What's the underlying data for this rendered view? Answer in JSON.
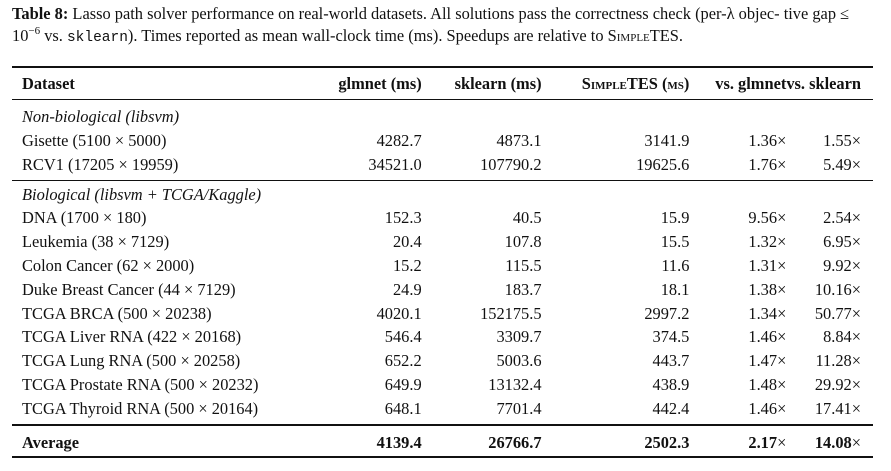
{
  "caption": {
    "label": "Table 8:",
    "text_part1": " Lasso path solver performance on real-world datasets. All solutions pass the correctness check (per-λ objec- tive gap ≤ 10",
    "exponent": "−6",
    "text_part2": " vs. ",
    "code": "sklearn",
    "text_part3": "). Times reported as mean wall-clock time (ms). Speedups are relative to ",
    "method": "SimpleTES",
    "text_end": "."
  },
  "table": {
    "headers": {
      "dataset": "Dataset",
      "glmnet": "glmnet (ms)",
      "sklearn": "sklearn (ms)",
      "simpletes": "SimpleTES (ms)",
      "vs_glmnet": "vs. glmnet",
      "vs_sklearn": "vs. sklearn"
    },
    "groups": [
      {
        "label": "Non-biological (libsvm)",
        "rows": [
          {
            "dataset": "Gisette (5100 × 5000)",
            "glmnet": "4282.7",
            "sklearn": "4873.1",
            "simpletes": "3141.9",
            "vs_glmnet": "1.36",
            "vs_sklearn": "1.55"
          },
          {
            "dataset": "RCV1 (17205 × 19959)",
            "glmnet": "34521.0",
            "sklearn": "107790.2",
            "simpletes": "19625.6",
            "vs_glmnet": "1.76",
            "vs_sklearn": "5.49"
          }
        ]
      },
      {
        "label": "Biological (libsvm + TCGA/Kaggle)",
        "rows": [
          {
            "dataset": "DNA (1700 × 180)",
            "glmnet": "152.3",
            "sklearn": "40.5",
            "simpletes": "15.9",
            "vs_glmnet": "9.56",
            "vs_sklearn": "2.54"
          },
          {
            "dataset": "Leukemia (38 × 7129)",
            "glmnet": "20.4",
            "sklearn": "107.8",
            "simpletes": "15.5",
            "vs_glmnet": "1.32",
            "vs_sklearn": "6.95"
          },
          {
            "dataset": "Colon Cancer (62 × 2000)",
            "glmnet": "15.2",
            "sklearn": "115.5",
            "simpletes": "11.6",
            "vs_glmnet": "1.31",
            "vs_sklearn": "9.92"
          },
          {
            "dataset": "Duke Breast Cancer (44 × 7129)",
            "glmnet": "24.9",
            "sklearn": "183.7",
            "simpletes": "18.1",
            "vs_glmnet": "1.38",
            "vs_sklearn": "10.16"
          },
          {
            "dataset": "TCGA BRCA (500 × 20238)",
            "glmnet": "4020.1",
            "sklearn": "152175.5",
            "simpletes": "2997.2",
            "vs_glmnet": "1.34",
            "vs_sklearn": "50.77"
          },
          {
            "dataset": "TCGA Liver RNA (422 × 20168)",
            "glmnet": "546.4",
            "sklearn": "3309.7",
            "simpletes": "374.5",
            "vs_glmnet": "1.46",
            "vs_sklearn": "8.84"
          },
          {
            "dataset": "TCGA Lung RNA (500 × 20258)",
            "glmnet": "652.2",
            "sklearn": "5003.6",
            "simpletes": "443.7",
            "vs_glmnet": "1.47",
            "vs_sklearn": "11.28"
          },
          {
            "dataset": "TCGA Prostate RNA (500 × 20232)",
            "glmnet": "649.9",
            "sklearn": "13132.4",
            "simpletes": "438.9",
            "vs_glmnet": "1.48",
            "vs_sklearn": "29.92"
          },
          {
            "dataset": "TCGA Thyroid RNA (500 × 20164)",
            "glmnet": "648.1",
            "sklearn": "7701.4",
            "simpletes": "442.4",
            "vs_glmnet": "1.46",
            "vs_sklearn": "17.41"
          }
        ]
      }
    ],
    "average": {
      "dataset": "Average",
      "glmnet": "4139.4",
      "sklearn": "26766.7",
      "simpletes": "2502.3",
      "vs_glmnet": "2.17",
      "vs_sklearn": "14.08"
    },
    "times_symbol": "×"
  }
}
